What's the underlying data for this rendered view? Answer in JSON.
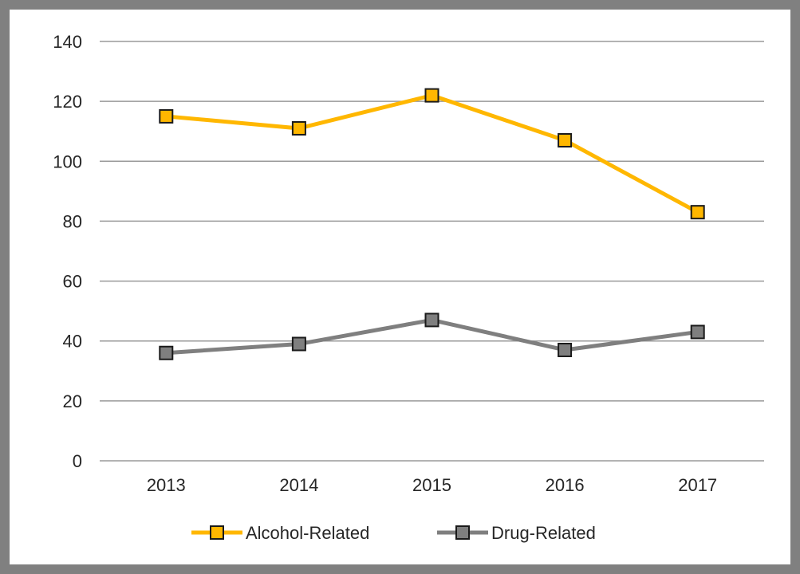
{
  "chart_data": {
    "type": "line",
    "title": "",
    "xlabel": "",
    "ylabel": "",
    "categories": [
      "2013",
      "2014",
      "2015",
      "2016",
      "2017"
    ],
    "ylim": [
      0,
      140
    ],
    "yticks": [
      "0",
      "20",
      "40",
      "60",
      "80",
      "100",
      "120",
      "140"
    ],
    "grid": true,
    "legend_position": "bottom",
    "series": [
      {
        "name": "Alcohol-Related",
        "color": "#FFB700",
        "values": [
          115,
          111,
          122,
          107,
          83
        ]
      },
      {
        "name": "Drug-Related",
        "color": "#7F7F7F",
        "values": [
          36,
          39,
          47,
          37,
          43
        ]
      }
    ]
  }
}
